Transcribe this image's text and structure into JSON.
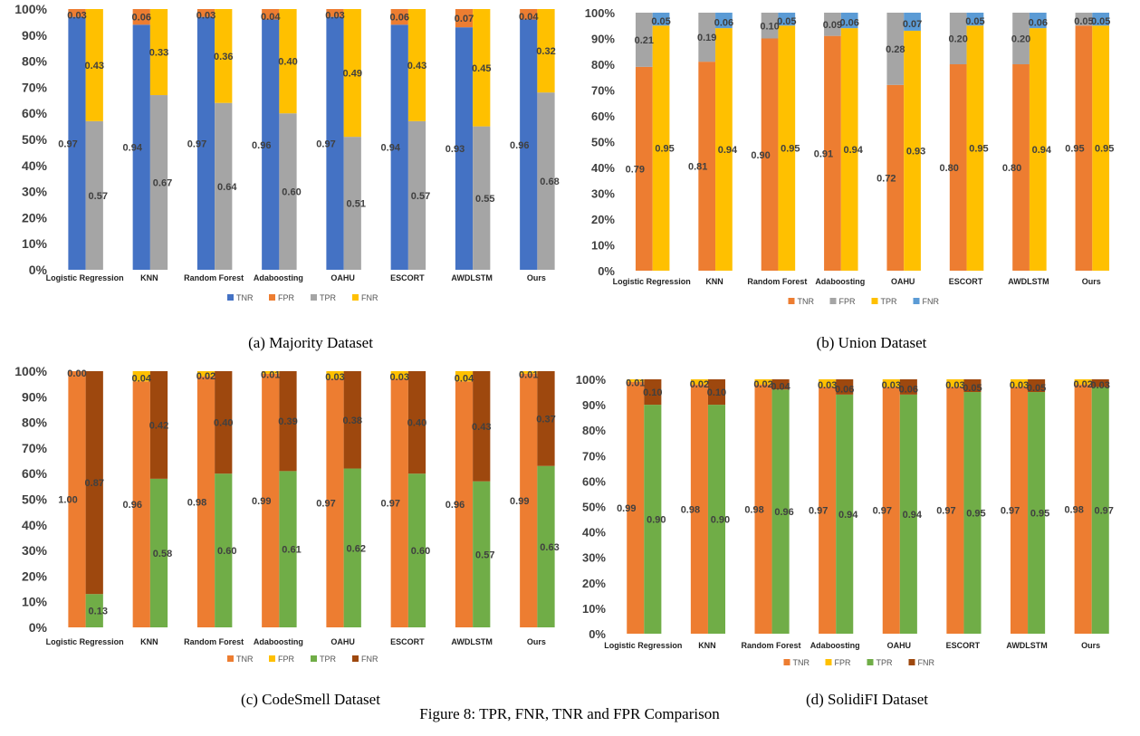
{
  "figure_caption": "Figure 8: TPR, FNR, TNR and FPR Comparison",
  "colors": {
    "TNR_blue": "#4472C4",
    "TNR_orange": "#ED7D31",
    "FPR_orange": "#ED7D31",
    "FPR_yellow": "#FFC000",
    "TPR_gray": "#A5A5A5",
    "TPR_green": "#70AD47",
    "FNR_yellow": "#FFC000",
    "FNR_blue": "#5B9BD5",
    "FNR_brown": "#9E480E"
  },
  "chart_data": [
    {
      "type": "bar",
      "caption": "(a) Majority Dataset",
      "categories": [
        "Logistic Regression",
        "KNN",
        "Random Forest",
        "Adaboosting",
        "OAHU",
        "ESCORT",
        "AWDLSTM",
        "Ours"
      ],
      "yticks": [
        "0%",
        "10%",
        "20%",
        "30%",
        "40%",
        "50%",
        "60%",
        "70%",
        "80%",
        "90%",
        "100%"
      ],
      "ylim": [
        0,
        1
      ],
      "legend_position": "bottom",
      "series": [
        {
          "name": "TNR",
          "values": [
            0.97,
            0.94,
            0.97,
            0.96,
            0.97,
            0.94,
            0.93,
            0.96
          ]
        },
        {
          "name": "FPR",
          "values": [
            0.03,
            0.06,
            0.03,
            0.04,
            0.03,
            0.06,
            0.07,
            0.04
          ]
        },
        {
          "name": "TPR",
          "values": [
            0.57,
            0.67,
            0.64,
            0.6,
            0.51,
            0.57,
            0.55,
            0.68
          ]
        },
        {
          "name": "FNR",
          "values": [
            0.43,
            0.33,
            0.36,
            0.4,
            0.49,
            0.43,
            0.45,
            0.32
          ]
        }
      ],
      "data_labels": {
        "TNR": [
          "0.97",
          "0.94",
          "0.97",
          "0.96",
          "0.97",
          "0.94",
          "0.93",
          "0.96"
        ],
        "FPR": [
          "0.03",
          "0.06",
          "0.03",
          "0.04",
          "0.03",
          "0.06",
          "0.07",
          "0.04"
        ],
        "TPR": [
          "0.57",
          "0.67",
          "0.64",
          "0.60",
          "0.51",
          "0.57",
          "0.55",
          "0.68"
        ],
        "FNR": [
          "0.43",
          "0.33",
          "0.36",
          "0.40",
          "0.49",
          "0.43",
          "0.45",
          "0.32"
        ]
      }
    },
    {
      "type": "bar",
      "caption": "(b) Union Dataset",
      "categories": [
        "Logistic Regression",
        "KNN",
        "Random Forest",
        "Adaboosting",
        "OAHU",
        "ESCORT",
        "AWDLSTM",
        "Ours"
      ],
      "yticks": [
        "0%",
        "10%",
        "20%",
        "30%",
        "40%",
        "50%",
        "60%",
        "70%",
        "80%",
        "90%",
        "100%"
      ],
      "ylim": [
        0,
        1
      ],
      "legend_position": "bottom",
      "series": [
        {
          "name": "TNR",
          "values": [
            0.79,
            0.81,
            0.9,
            0.91,
            0.72,
            0.8,
            0.8,
            0.95
          ]
        },
        {
          "name": "FPR",
          "values": [
            0.21,
            0.19,
            0.1,
            0.09,
            0.28,
            0.2,
            0.2,
            0.05
          ]
        },
        {
          "name": "TPR",
          "values": [
            0.95,
            0.94,
            0.95,
            0.94,
            0.93,
            0.95,
            0.94,
            0.95
          ]
        },
        {
          "name": "FNR",
          "values": [
            0.05,
            0.06,
            0.05,
            0.06,
            0.07,
            0.05,
            0.06,
            0.05
          ]
        }
      ],
      "data_labels": {
        "TNR": [
          "0.79",
          "0.81",
          "0.90",
          "0.91",
          "0.72",
          "0.80",
          "0.80",
          "0.95"
        ],
        "FPR": [
          "0.21",
          "0.19",
          "0.10",
          "0.09",
          "0.28",
          "0.20",
          "0.20",
          "0.05"
        ],
        "TPR": [
          "0.95",
          "0.94",
          "0.95",
          "0.94",
          "0.93",
          "0.95",
          "0.94",
          "0.95"
        ],
        "FNR": [
          "0.05",
          "0.06",
          "0.05",
          "0.06",
          "0.07",
          "0.05",
          "0.06",
          "0.05"
        ]
      }
    },
    {
      "type": "bar",
      "caption": "(c) CodeSmell Dataset",
      "categories": [
        "Logistic Regression",
        "KNN",
        "Random Forest",
        "Adaboosting",
        "OAHU",
        "ESCORT",
        "AWDLSTM",
        "Ours"
      ],
      "yticks": [
        "0%",
        "10%",
        "20%",
        "30%",
        "40%",
        "50%",
        "60%",
        "70%",
        "80%",
        "90%",
        "100%"
      ],
      "ylim": [
        0,
        1
      ],
      "legend_position": "bottom",
      "series": [
        {
          "name": "TNR",
          "values": [
            1.0,
            0.96,
            0.98,
            0.99,
            0.97,
            0.97,
            0.96,
            0.99
          ]
        },
        {
          "name": "FPR",
          "values": [
            0.0,
            0.04,
            0.02,
            0.01,
            0.03,
            0.03,
            0.04,
            0.01
          ]
        },
        {
          "name": "TPR",
          "values": [
            0.13,
            0.58,
            0.6,
            0.61,
            0.62,
            0.6,
            0.57,
            0.63
          ]
        },
        {
          "name": "FNR",
          "values": [
            0.87,
            0.42,
            0.4,
            0.39,
            0.38,
            0.4,
            0.43,
            0.37
          ]
        }
      ],
      "data_labels": {
        "TNR": [
          "1.00",
          "0.96",
          "0.98",
          "0.99",
          "0.97",
          "0.97",
          "0.96",
          "0.99"
        ],
        "FPR": [
          "0.00",
          "0.04",
          "0.02",
          "0.01",
          "0.03",
          "0.03",
          "0.04",
          "0.01"
        ],
        "TPR": [
          "0.13",
          "0.58",
          "0.60",
          "0.61",
          "0.62",
          "0.60",
          "0.57",
          "0.63"
        ],
        "FNR": [
          "0.87",
          "0.42",
          "0.40",
          "0.39",
          "0.38",
          "0.40",
          "0.43",
          "0.37"
        ]
      }
    },
    {
      "type": "bar",
      "caption": "(d) SolidiFI Dataset",
      "categories": [
        "Logistic Regression",
        "KNN",
        "Random Forest",
        "Adaboosting",
        "OAHU",
        "ESCORT",
        "AWDLSTM",
        "Ours"
      ],
      "yticks": [
        "0%",
        "10%",
        "20%",
        "30%",
        "40%",
        "50%",
        "60%",
        "70%",
        "80%",
        "90%",
        "100%"
      ],
      "ylim": [
        0,
        1
      ],
      "legend_position": "bottom",
      "series": [
        {
          "name": "TNR",
          "values": [
            0.99,
            0.98,
            0.98,
            0.97,
            0.97,
            0.97,
            0.97,
            0.98
          ]
        },
        {
          "name": "FPR",
          "values": [
            0.01,
            0.02,
            0.02,
            0.03,
            0.03,
            0.03,
            0.03,
            0.02
          ]
        },
        {
          "name": "TPR",
          "values": [
            0.9,
            0.9,
            0.96,
            0.94,
            0.94,
            0.95,
            0.95,
            0.97
          ]
        },
        {
          "name": "FNR",
          "values": [
            0.1,
            0.1,
            0.04,
            0.06,
            0.06,
            0.05,
            0.05,
            0.03
          ]
        }
      ],
      "data_labels": {
        "TNR": [
          "0.99",
          "0.98",
          "0.98",
          "0.97",
          "0.97",
          "0.97",
          "0.97",
          "0.98"
        ],
        "FPR": [
          "0.01",
          "0.02",
          "0.02",
          "0.03",
          "0.03",
          "0.03",
          "0.03",
          "0.02"
        ],
        "TPR": [
          "0.90",
          "0.90",
          "0.96",
          "0.94",
          "0.94",
          "0.95",
          "0.95",
          "0.97"
        ],
        "FNR": [
          "0.10",
          "0.10",
          "0.04",
          "0.06",
          "0.06",
          "0.05",
          "0.05",
          "0.03"
        ]
      }
    }
  ]
}
